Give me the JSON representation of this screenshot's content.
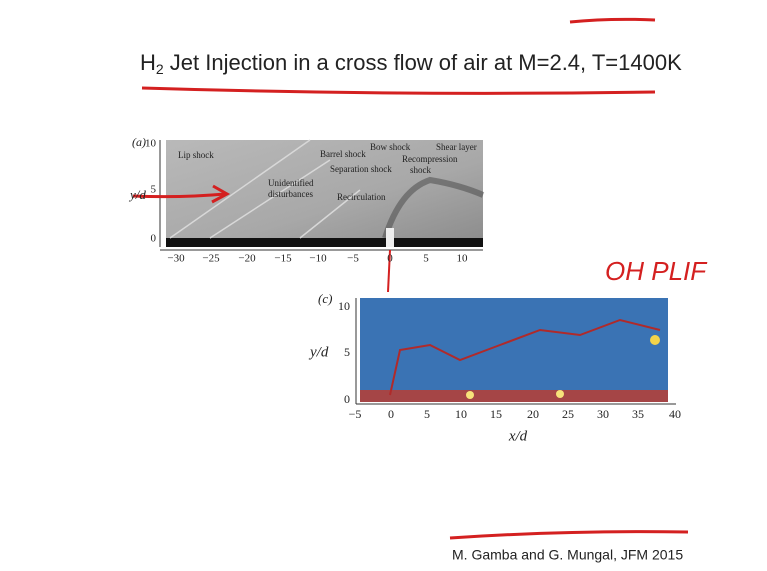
{
  "title": {
    "main": "H",
    "subscript": "2",
    "rest": " Jet Injection in a cross flow of air at M=2.4, T=1400K"
  },
  "figure_a": {
    "panel_label": "(a)",
    "y_label": "y/d",
    "y_ticks": [
      "10",
      "5",
      "0"
    ],
    "x_ticks": [
      "−30",
      "−25",
      "−20",
      "−15",
      "−10",
      "−5",
      "0",
      "5",
      "10"
    ],
    "annotations": [
      "Lip shock",
      "Barrel shock",
      "Bow shock",
      "Shear layer",
      "Recompression",
      "shock",
      "Separation shock",
      "Unidentified",
      "disturbances",
      "Recirculation"
    ]
  },
  "figure_c": {
    "panel_label": "(c)",
    "y_label": "y/d",
    "x_label": "x/d",
    "y_ticks": [
      "10",
      "5",
      "0"
    ],
    "x_ticks": [
      "−5",
      "0",
      "5",
      "10",
      "15",
      "20",
      "25",
      "30",
      "35",
      "40"
    ]
  },
  "handwritten_note": "OH PLIF",
  "citation": "M. Gamba and G. Mungal, JFM 2015"
}
